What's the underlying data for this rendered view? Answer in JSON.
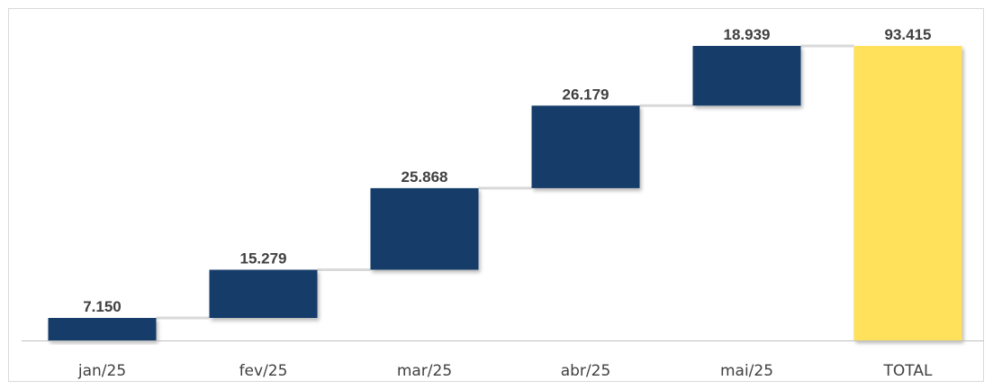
{
  "chart_data": {
    "type": "waterfall",
    "categories": [
      "jan/25",
      "fev/25",
      "mar/25",
      "abr/25",
      "mai/25",
      "TOTAL"
    ],
    "values": [
      7150,
      15279,
      25868,
      26179,
      18939,
      93415
    ],
    "value_labels": [
      "7.150",
      "15.279",
      "25.868",
      "26.179",
      "18.939",
      "93.415"
    ],
    "total_index": 5,
    "title": "",
    "xlabel": "",
    "ylabel": "",
    "ylim": [
      0,
      93415
    ],
    "grid": false,
    "legend": "none",
    "colors": {
      "increase": "#173e6b",
      "total": "#ffe15c",
      "connector": "#d9d9d9",
      "axis": "#bfbfbf",
      "text": "#404040"
    }
  }
}
